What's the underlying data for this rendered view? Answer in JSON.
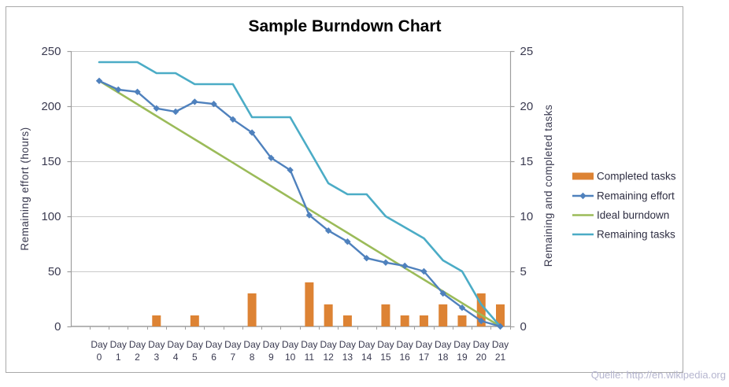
{
  "chart_data": {
    "type": "combo",
    "title": "Sample Burndown Chart",
    "source_note": "Quelle: http://en.wikipedia.org",
    "categories": [
      "Day 0",
      "Day 1",
      "Day 2",
      "Day 3",
      "Day 4",
      "Day 5",
      "Day 6",
      "Day 7",
      "Day 8",
      "Day 9",
      "Day 10",
      "Day 11",
      "Day 12",
      "Day 13",
      "Day 14",
      "Day 15",
      "Day 16",
      "Day 17",
      "Day 18",
      "Day 19",
      "Day 20",
      "Day 21"
    ],
    "left_axis": {
      "label": "Remaining effort (hours)",
      "ticks": [
        0,
        50,
        100,
        150,
        200,
        250
      ],
      "range": [
        0,
        250
      ]
    },
    "right_axis": {
      "label": "Remaining and completed tasks",
      "ticks": [
        0,
        5,
        10,
        15,
        20,
        25
      ],
      "range": [
        0,
        25
      ]
    },
    "grid": true,
    "legend_position": "right",
    "series": [
      {
        "name": "Completed tasks",
        "type": "bar",
        "axis": "right",
        "color": "#DD8334",
        "values": [
          0,
          0,
          0,
          1,
          0,
          1,
          0,
          0,
          3,
          0,
          0,
          4,
          2,
          1,
          0,
          2,
          1,
          1,
          2,
          1,
          3,
          2
        ]
      },
      {
        "name": "Remaining effort",
        "type": "line",
        "marker": "diamond",
        "axis": "left",
        "color": "#4F81BD",
        "values": [
          223,
          215,
          213,
          198,
          195,
          204,
          202,
          188,
          176,
          153,
          142,
          101,
          87,
          77,
          62,
          58,
          55,
          50,
          30,
          17,
          5,
          0
        ]
      },
      {
        "name": "Ideal burndown",
        "type": "line",
        "marker": "none",
        "axis": "left",
        "color": "#9BBB59",
        "values": [
          223,
          212.4,
          201.8,
          191.1,
          180.5,
          169.9,
          159.3,
          148.7,
          138,
          127.4,
          116.8,
          106.2,
          95.6,
          85,
          74.3,
          63.7,
          53.1,
          42.5,
          31.9,
          21.2,
          10.6,
          0
        ]
      },
      {
        "name": "Remaining tasks",
        "type": "line",
        "marker": "none",
        "axis": "right",
        "color": "#4BACC6",
        "values": [
          24,
          24,
          24,
          23,
          23,
          22,
          22,
          22,
          19,
          19,
          19,
          16,
          13,
          12,
          12,
          10,
          9,
          8,
          6,
          5,
          2,
          0
        ]
      }
    ],
    "colors": {
      "gridline": "#C9C9C9",
      "axis_line": "#9E9E9E",
      "tick_text": "#3A3A50",
      "title_text": "#000000",
      "legend_text": "#2E2E42",
      "source_text": "#B5B5CF",
      "frame_border": "#A9A9A9",
      "background": "#FFFFFF"
    }
  }
}
